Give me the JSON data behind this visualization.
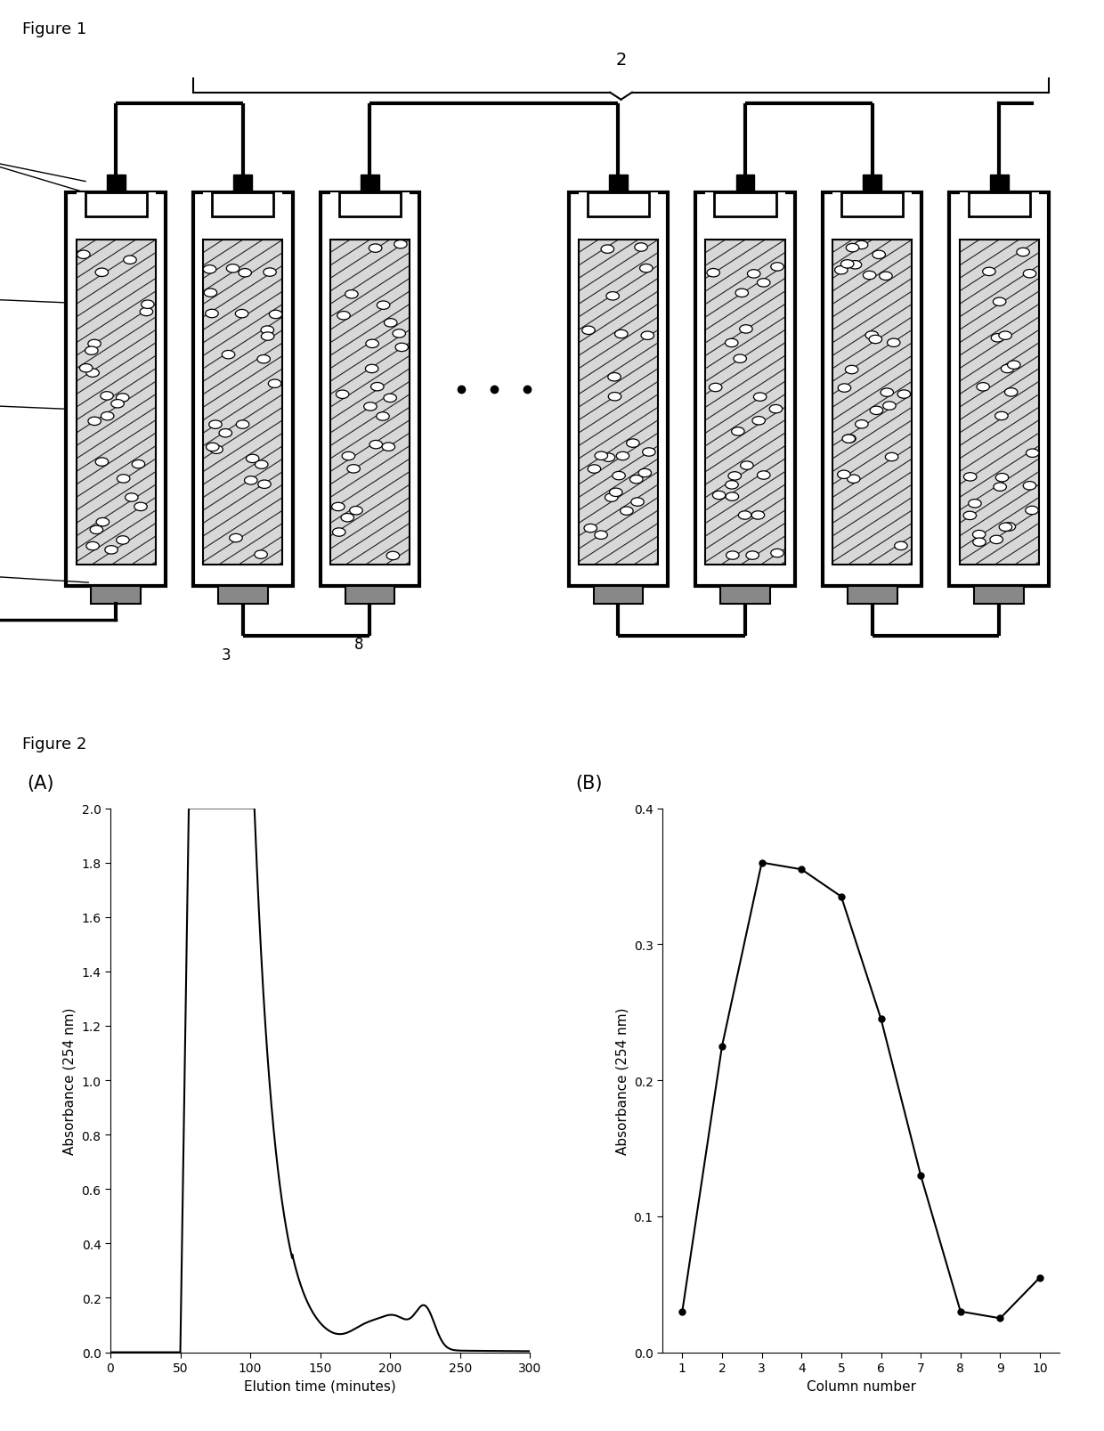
{
  "fig1_label": "Figure 1",
  "fig2_label": "Figure 2",
  "panel_A_label": "(A)",
  "panel_B_label": "(B)",
  "plot_A": {
    "xlabel": "Elution time (minutes)",
    "ylabel": "Absorbance (254 nm)",
    "xlim": [
      0,
      300
    ],
    "ylim": [
      0,
      2.0
    ],
    "yticks": [
      0,
      0.2,
      0.4,
      0.6,
      0.8,
      1.0,
      1.2,
      1.4,
      1.6,
      1.8,
      2.0
    ],
    "xticks": [
      0,
      50,
      100,
      150,
      200,
      250,
      300
    ]
  },
  "plot_B": {
    "xlabel": "Column number",
    "ylabel": "Absorbance (254 nm)",
    "xlim": [
      0.5,
      10.5
    ],
    "ylim": [
      0,
      0.4
    ],
    "yticks": [
      0,
      0.1,
      0.2,
      0.3,
      0.4
    ],
    "xticks": [
      1,
      2,
      3,
      4,
      5,
      6,
      7,
      8,
      9,
      10
    ],
    "x": [
      1,
      2,
      3,
      4,
      5,
      6,
      7,
      8,
      9,
      10
    ],
    "y": [
      0.03,
      0.225,
      0.36,
      0.355,
      0.335,
      0.245,
      0.13,
      0.03,
      0.025,
      0.055
    ]
  },
  "background_color": "#ffffff",
  "line_color": "#000000"
}
